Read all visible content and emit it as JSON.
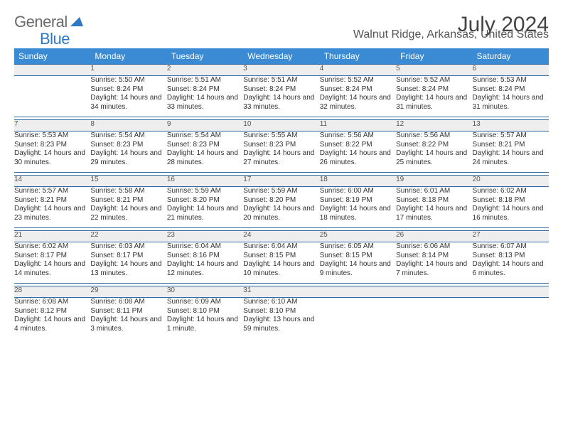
{
  "brand": {
    "general": "General",
    "blue": "Blue"
  },
  "header": {
    "title": "July 2024",
    "subtitle": "Walnut Ridge, Arkansas, United States"
  },
  "colors": {
    "header_bg": "#3b8bd4",
    "rule": "#2f6aa5",
    "daynum_bg": "#eeeeee"
  },
  "day_labels": [
    "Sunday",
    "Monday",
    "Tuesday",
    "Wednesday",
    "Thursday",
    "Friday",
    "Saturday"
  ],
  "weeks": [
    {
      "nums": [
        "",
        "1",
        "2",
        "3",
        "4",
        "5",
        "6"
      ],
      "cells": [
        null,
        {
          "sunrise": "Sunrise: 5:50 AM",
          "sunset": "Sunset: 8:24 PM",
          "daylight": "Daylight: 14 hours and 34 minutes."
        },
        {
          "sunrise": "Sunrise: 5:51 AM",
          "sunset": "Sunset: 8:24 PM",
          "daylight": "Daylight: 14 hours and 33 minutes."
        },
        {
          "sunrise": "Sunrise: 5:51 AM",
          "sunset": "Sunset: 8:24 PM",
          "daylight": "Daylight: 14 hours and 33 minutes."
        },
        {
          "sunrise": "Sunrise: 5:52 AM",
          "sunset": "Sunset: 8:24 PM",
          "daylight": "Daylight: 14 hours and 32 minutes."
        },
        {
          "sunrise": "Sunrise: 5:52 AM",
          "sunset": "Sunset: 8:24 PM",
          "daylight": "Daylight: 14 hours and 31 minutes."
        },
        {
          "sunrise": "Sunrise: 5:53 AM",
          "sunset": "Sunset: 8:24 PM",
          "daylight": "Daylight: 14 hours and 31 minutes."
        }
      ]
    },
    {
      "nums": [
        "7",
        "8",
        "9",
        "10",
        "11",
        "12",
        "13"
      ],
      "cells": [
        {
          "sunrise": "Sunrise: 5:53 AM",
          "sunset": "Sunset: 8:23 PM",
          "daylight": "Daylight: 14 hours and 30 minutes."
        },
        {
          "sunrise": "Sunrise: 5:54 AM",
          "sunset": "Sunset: 8:23 PM",
          "daylight": "Daylight: 14 hours and 29 minutes."
        },
        {
          "sunrise": "Sunrise: 5:54 AM",
          "sunset": "Sunset: 8:23 PM",
          "daylight": "Daylight: 14 hours and 28 minutes."
        },
        {
          "sunrise": "Sunrise: 5:55 AM",
          "sunset": "Sunset: 8:23 PM",
          "daylight": "Daylight: 14 hours and 27 minutes."
        },
        {
          "sunrise": "Sunrise: 5:56 AM",
          "sunset": "Sunset: 8:22 PM",
          "daylight": "Daylight: 14 hours and 26 minutes."
        },
        {
          "sunrise": "Sunrise: 5:56 AM",
          "sunset": "Sunset: 8:22 PM",
          "daylight": "Daylight: 14 hours and 25 minutes."
        },
        {
          "sunrise": "Sunrise: 5:57 AM",
          "sunset": "Sunset: 8:21 PM",
          "daylight": "Daylight: 14 hours and 24 minutes."
        }
      ]
    },
    {
      "nums": [
        "14",
        "15",
        "16",
        "17",
        "18",
        "19",
        "20"
      ],
      "cells": [
        {
          "sunrise": "Sunrise: 5:57 AM",
          "sunset": "Sunset: 8:21 PM",
          "daylight": "Daylight: 14 hours and 23 minutes."
        },
        {
          "sunrise": "Sunrise: 5:58 AM",
          "sunset": "Sunset: 8:21 PM",
          "daylight": "Daylight: 14 hours and 22 minutes."
        },
        {
          "sunrise": "Sunrise: 5:59 AM",
          "sunset": "Sunset: 8:20 PM",
          "daylight": "Daylight: 14 hours and 21 minutes."
        },
        {
          "sunrise": "Sunrise: 5:59 AM",
          "sunset": "Sunset: 8:20 PM",
          "daylight": "Daylight: 14 hours and 20 minutes."
        },
        {
          "sunrise": "Sunrise: 6:00 AM",
          "sunset": "Sunset: 8:19 PM",
          "daylight": "Daylight: 14 hours and 18 minutes."
        },
        {
          "sunrise": "Sunrise: 6:01 AM",
          "sunset": "Sunset: 8:18 PM",
          "daylight": "Daylight: 14 hours and 17 minutes."
        },
        {
          "sunrise": "Sunrise: 6:02 AM",
          "sunset": "Sunset: 8:18 PM",
          "daylight": "Daylight: 14 hours and 16 minutes."
        }
      ]
    },
    {
      "nums": [
        "21",
        "22",
        "23",
        "24",
        "25",
        "26",
        "27"
      ],
      "cells": [
        {
          "sunrise": "Sunrise: 6:02 AM",
          "sunset": "Sunset: 8:17 PM",
          "daylight": "Daylight: 14 hours and 14 minutes."
        },
        {
          "sunrise": "Sunrise: 6:03 AM",
          "sunset": "Sunset: 8:17 PM",
          "daylight": "Daylight: 14 hours and 13 minutes."
        },
        {
          "sunrise": "Sunrise: 6:04 AM",
          "sunset": "Sunset: 8:16 PM",
          "daylight": "Daylight: 14 hours and 12 minutes."
        },
        {
          "sunrise": "Sunrise: 6:04 AM",
          "sunset": "Sunset: 8:15 PM",
          "daylight": "Daylight: 14 hours and 10 minutes."
        },
        {
          "sunrise": "Sunrise: 6:05 AM",
          "sunset": "Sunset: 8:15 PM",
          "daylight": "Daylight: 14 hours and 9 minutes."
        },
        {
          "sunrise": "Sunrise: 6:06 AM",
          "sunset": "Sunset: 8:14 PM",
          "daylight": "Daylight: 14 hours and 7 minutes."
        },
        {
          "sunrise": "Sunrise: 6:07 AM",
          "sunset": "Sunset: 8:13 PM",
          "daylight": "Daylight: 14 hours and 6 minutes."
        }
      ]
    },
    {
      "nums": [
        "28",
        "29",
        "30",
        "31",
        "",
        "",
        ""
      ],
      "cells": [
        {
          "sunrise": "Sunrise: 6:08 AM",
          "sunset": "Sunset: 8:12 PM",
          "daylight": "Daylight: 14 hours and 4 minutes."
        },
        {
          "sunrise": "Sunrise: 6:08 AM",
          "sunset": "Sunset: 8:11 PM",
          "daylight": "Daylight: 14 hours and 3 minutes."
        },
        {
          "sunrise": "Sunrise: 6:09 AM",
          "sunset": "Sunset: 8:10 PM",
          "daylight": "Daylight: 14 hours and 1 minute."
        },
        {
          "sunrise": "Sunrise: 6:10 AM",
          "sunset": "Sunset: 8:10 PM",
          "daylight": "Daylight: 13 hours and 59 minutes."
        },
        null,
        null,
        null
      ]
    }
  ]
}
